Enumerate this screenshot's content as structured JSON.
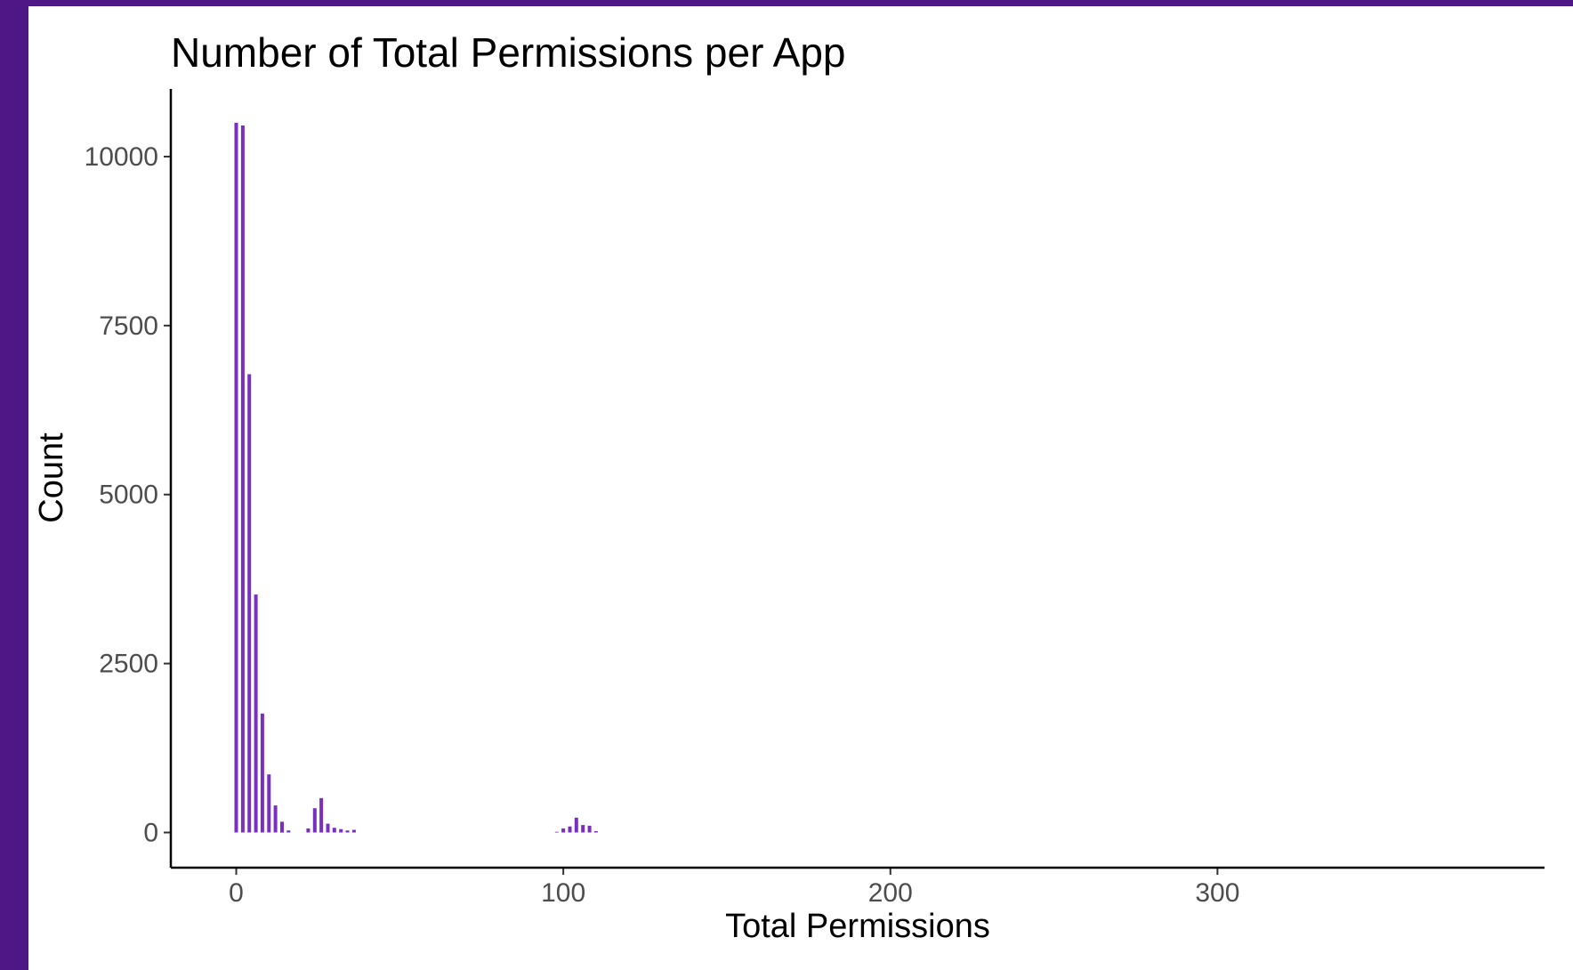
{
  "colors": {
    "frame": "#4f1786",
    "background": "#ffffff",
    "bar": "#7b2fbf",
    "axis": "#000000",
    "tick_text": "#4d4d4d"
  },
  "chart_data": {
    "type": "bar",
    "title": "Number of Total Permissions per App",
    "xlabel": "Total Permissions",
    "ylabel": "Count",
    "xlim": [
      -20,
      400
    ],
    "ylim": [
      -520,
      11000
    ],
    "x_ticks": [
      0,
      100,
      200,
      300
    ],
    "x_tick_labels": [
      "0",
      "100",
      "200",
      "300"
    ],
    "y_ticks": [
      0,
      2500,
      5000,
      7500,
      10000
    ],
    "y_tick_labels": [
      "0",
      "2500",
      "5000",
      "7500",
      "10000"
    ],
    "grid": false,
    "legend": "none",
    "x": [
      0,
      2,
      4,
      6,
      8,
      10,
      12,
      14,
      16,
      22,
      24,
      26,
      28,
      30,
      32,
      34,
      36,
      98,
      100,
      102,
      104,
      106,
      108,
      110
    ],
    "values": [
      10500,
      10460,
      6780,
      3520,
      1760,
      860,
      400,
      160,
      30,
      60,
      360,
      510,
      130,
      70,
      50,
      30,
      40,
      10,
      60,
      90,
      220,
      110,
      100,
      20
    ]
  }
}
